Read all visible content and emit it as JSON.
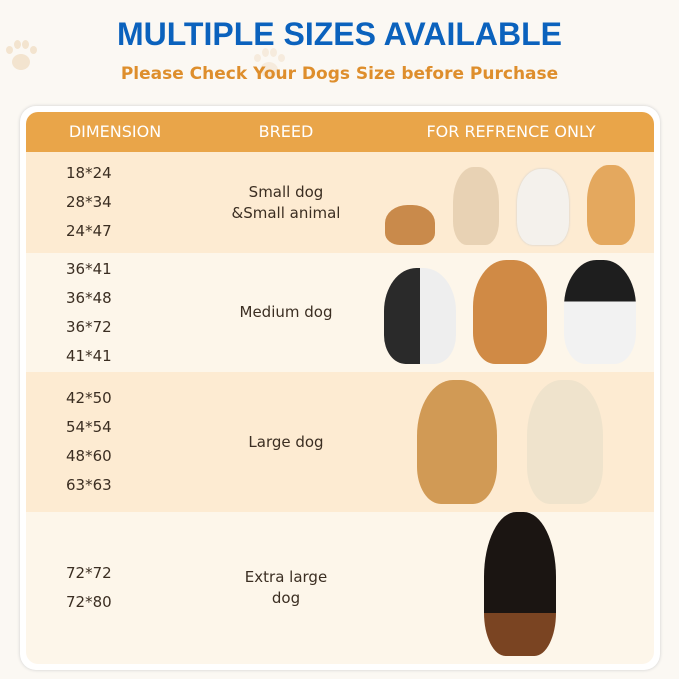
{
  "title": "MULTIPLE SIZES AVAILABLE",
  "subtitle": "Please Check Your Dogs Size before Purchase",
  "colors": {
    "title": "#0b62bd",
    "subtitle": "#de8e2c",
    "header": "#e9a549",
    "row_dark": "#fdebd2",
    "row_light": "#fdf6ea"
  },
  "table": {
    "headers": [
      "DIMENSION",
      "BREED",
      "FOR REFRENCE ONLY"
    ],
    "rows": [
      {
        "dimensions": [
          "18*24",
          "28*34",
          "24*47"
        ],
        "breed": "Small dog\n&Small animal",
        "pictures": [
          "guinea-pig",
          "chihuahua",
          "bichon-frise",
          "corgi"
        ]
      },
      {
        "dimensions": [
          "36*41",
          "36*48",
          "36*72",
          "41*41"
        ],
        "breed": "Medium dog",
        "pictures": [
          "french-bulldog",
          "shiba-inu",
          "border-collie"
        ]
      },
      {
        "dimensions": [
          "42*50",
          "54*54",
          "48*60",
          "63*63"
        ],
        "breed": "Large dog",
        "pictures": [
          "golden-retriever",
          "labrador"
        ]
      },
      {
        "dimensions": [
          "72*72",
          "72*80"
        ],
        "breed": "Extra large\ndog",
        "pictures": [
          "doberman"
        ]
      }
    ]
  }
}
